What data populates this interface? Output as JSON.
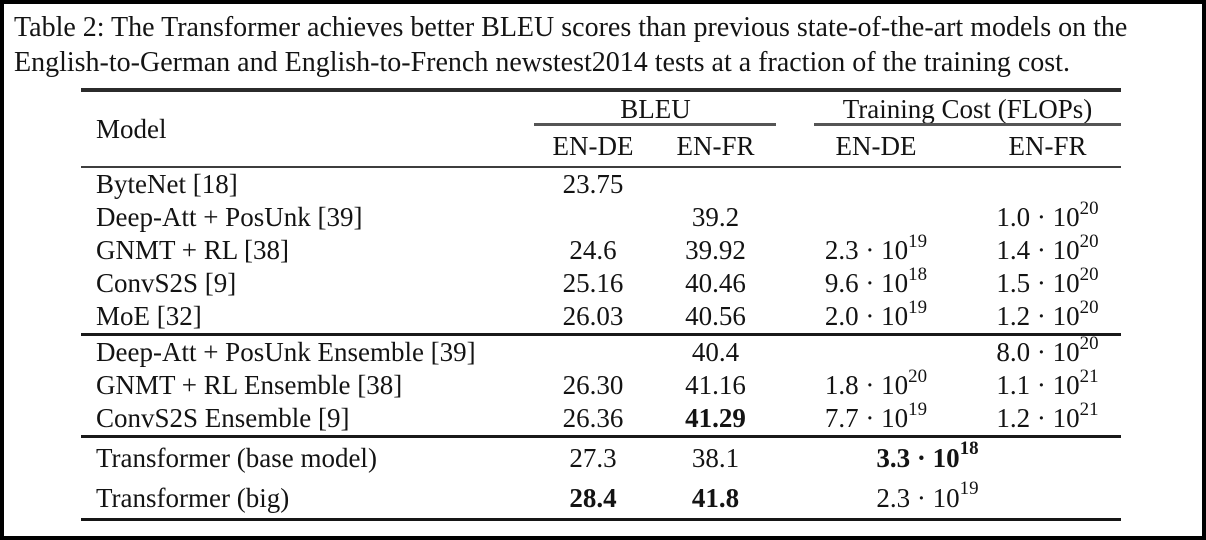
{
  "caption": "Table 2: The Transformer achieves better BLEU scores than previous state-of-the-art models on the English-to-German and English-to-French newstest2014 tests at a fraction of the training cost.",
  "table": {
    "header": {
      "model": "Model",
      "bleu_group": "BLEU",
      "cost_group": "Training Cost (FLOPs)",
      "subcols": [
        "EN-DE",
        "EN-FR",
        "EN-DE",
        "EN-FR"
      ]
    },
    "groups": [
      {
        "rows": [
          {
            "model": "ByteNet [18]",
            "bleu_en_de": "23.75",
            "bleu_en_fr": "",
            "cost_en_de": "",
            "cost_en_fr": ""
          },
          {
            "model": "Deep-Att + PosUnk [39]",
            "bleu_en_de": "",
            "bleu_en_fr": "39.2",
            "cost_en_de": "",
            "cost_en_fr": "1.0 · 10^20"
          },
          {
            "model": "GNMT + RL [38]",
            "bleu_en_de": "24.6",
            "bleu_en_fr": "39.92",
            "cost_en_de": "2.3 · 10^19",
            "cost_en_fr": "1.4 · 10^20"
          },
          {
            "model": "ConvS2S [9]",
            "bleu_en_de": "25.16",
            "bleu_en_fr": "40.46",
            "cost_en_de": "9.6 · 10^18",
            "cost_en_fr": "1.5 · 10^20"
          },
          {
            "model": "MoE [32]",
            "bleu_en_de": "26.03",
            "bleu_en_fr": "40.56",
            "cost_en_de": "2.0 · 10^19",
            "cost_en_fr": "1.2 · 10^20"
          }
        ]
      },
      {
        "rows": [
          {
            "model": "Deep-Att + PosUnk Ensemble [39]",
            "bleu_en_de": "",
            "bleu_en_fr": "40.4",
            "cost_en_de": "",
            "cost_en_fr": "8.0 · 10^20"
          },
          {
            "model": "GNMT + RL Ensemble [38]",
            "bleu_en_de": "26.30",
            "bleu_en_fr": "41.16",
            "cost_en_de": "1.8 · 10^20",
            "cost_en_fr": "1.1 · 10^21"
          },
          {
            "model": "ConvS2S Ensemble [9]",
            "bleu_en_de": "26.36",
            "bleu_en_fr": "41.29",
            "cost_en_de": "7.7 · 10^19",
            "cost_en_fr": "1.2 · 10^21",
            "bold": [
              "bleu_en_fr"
            ]
          }
        ]
      },
      {
        "rows": [
          {
            "model": "Transformer (base model)",
            "bleu_en_de": "27.3",
            "bleu_en_fr": "38.1",
            "cost_span": "3.3 · 10^18",
            "bold": [
              "cost_span"
            ]
          },
          {
            "model": "Transformer (big)",
            "bleu_en_de": "28.4",
            "bleu_en_fr": "41.8",
            "cost_span": "2.3 · 10^19",
            "bold": [
              "bleu_en_de",
              "bleu_en_fr"
            ]
          }
        ]
      }
    ]
  },
  "chart_data": {
    "type": "table",
    "title": "Table 2: BLEU scores and training cost (FLOPs) on newstest2014",
    "columns": [
      "Model",
      "BLEU EN-DE",
      "BLEU EN-FR",
      "Training Cost EN-DE (FLOPs)",
      "Training Cost EN-FR (FLOPs)"
    ],
    "rows": [
      [
        "ByteNet [18]",
        23.75,
        null,
        null,
        null
      ],
      [
        "Deep-Att + PosUnk [39]",
        null,
        39.2,
        null,
        1e+20
      ],
      [
        "GNMT + RL [38]",
        24.6,
        39.92,
        2.3e+19,
        1.4e+20
      ],
      [
        "ConvS2S [9]",
        25.16,
        40.46,
        9.6e+18,
        1.5e+20
      ],
      [
        "MoE [32]",
        26.03,
        40.56,
        2e+19,
        1.2e+20
      ],
      [
        "Deep-Att + PosUnk Ensemble [39]",
        null,
        40.4,
        null,
        8e+20
      ],
      [
        "GNMT + RL Ensemble [38]",
        26.3,
        41.16,
        1.8e+20,
        1.1e+21
      ],
      [
        "ConvS2S Ensemble [9]",
        26.36,
        41.29,
        7.7e+19,
        1.2e+21
      ],
      [
        "Transformer (base model)",
        27.3,
        38.1,
        3.3e+18,
        3.3e+18
      ],
      [
        "Transformer (big)",
        28.4,
        41.8,
        2.3e+19,
        2.3e+19
      ]
    ]
  },
  "colors": {
    "background": "#ffffff",
    "text": "#141414",
    "frame_border": "#000000",
    "heavy_rule": "#191919",
    "light_rule": "#555555"
  }
}
